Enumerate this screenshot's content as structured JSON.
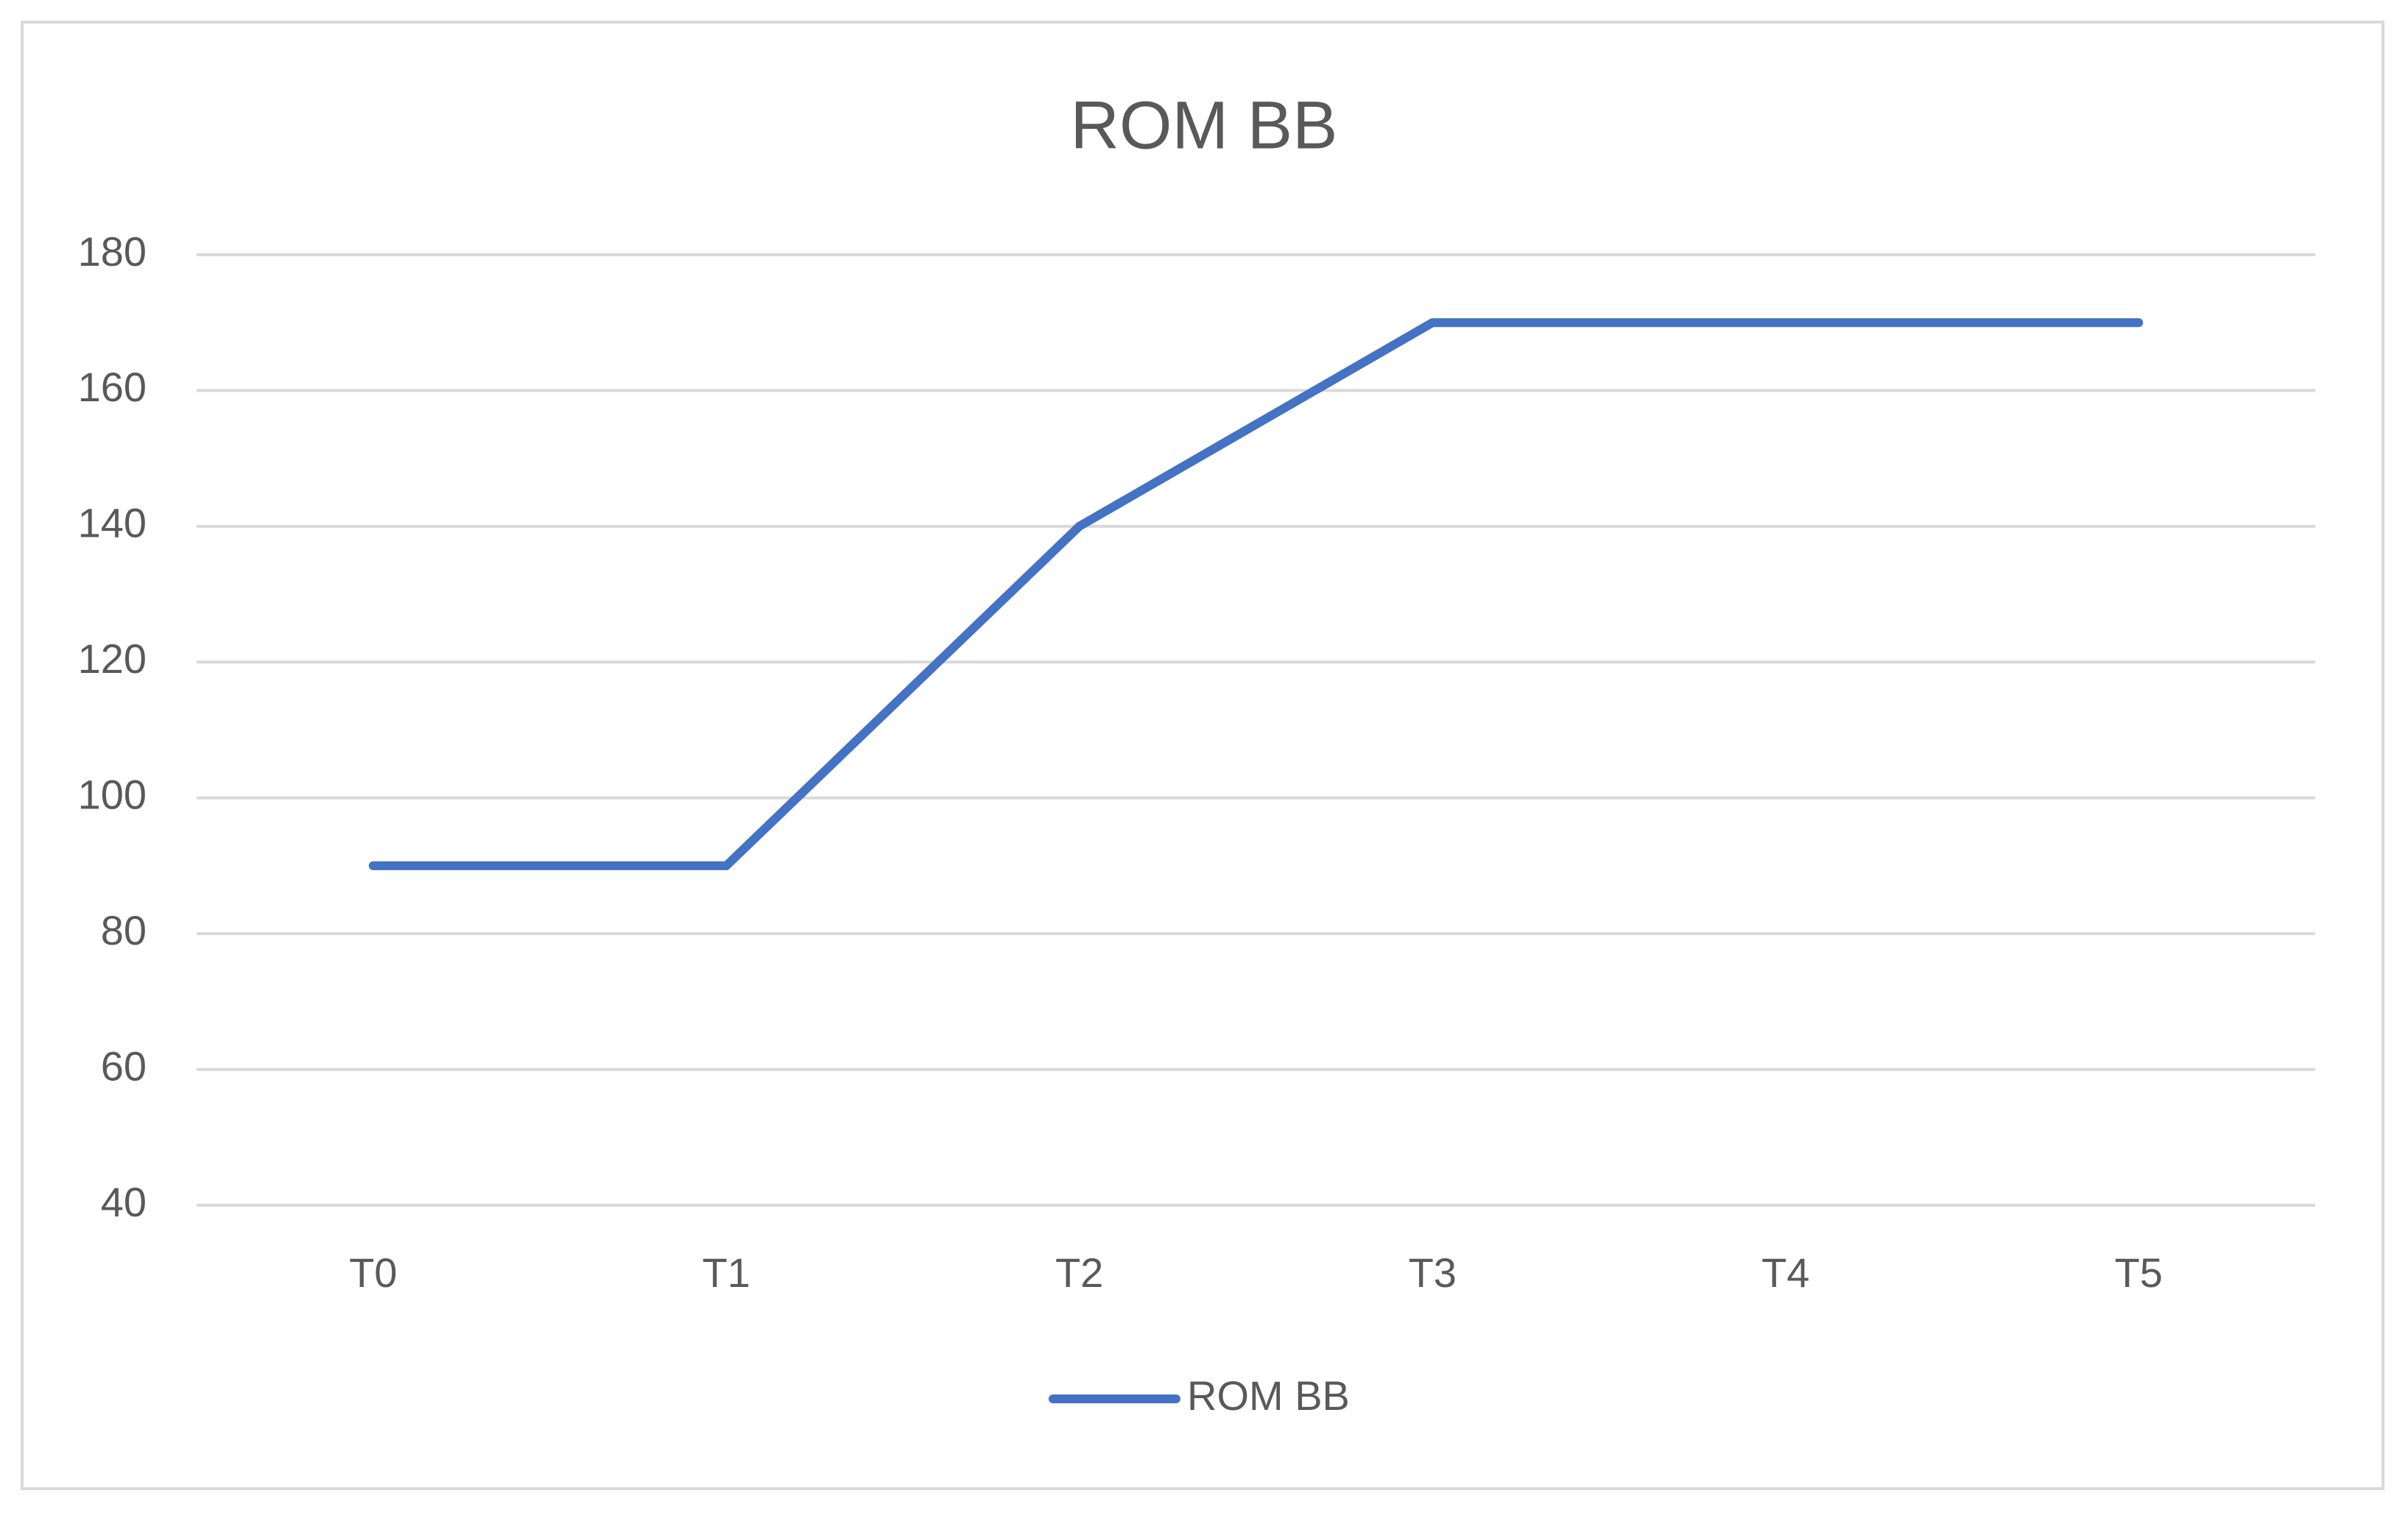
{
  "chart_data": {
    "type": "line",
    "title": "ROM BB",
    "categories": [
      "T0",
      "T1",
      "T2",
      "T3",
      "T4",
      "T5"
    ],
    "series": [
      {
        "name": "ROM BB",
        "color": "#4472c4",
        "values": [
          90,
          90,
          140,
          170,
          170,
          170
        ]
      }
    ],
    "ylim": [
      40,
      180
    ],
    "yticks": [
      40,
      60,
      80,
      100,
      120,
      140,
      160,
      180
    ],
    "grid": true,
    "legend": "bottom"
  }
}
